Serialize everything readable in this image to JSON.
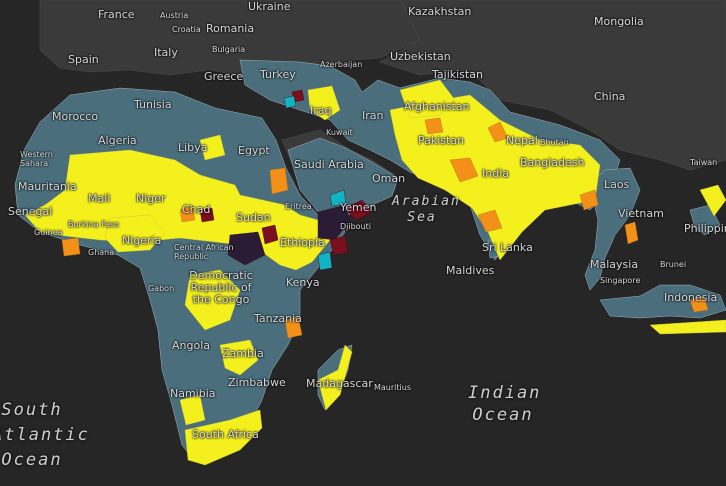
{
  "colors": {
    "ocean": "#262626",
    "land_outside": "#3a3a3a",
    "base": "#4a6e7c",
    "yellow": "#f3f01e",
    "orange": "#f39018",
    "dark_red": "#7a0f1e",
    "navy": "#2b1c35",
    "teal": "#10b4c4",
    "border": "#9fb3bb"
  },
  "labels": {
    "france": "France",
    "austria": "Austria",
    "romania": "Romania",
    "croatia": "Croatia",
    "ukraine": "Ukraine",
    "kazakhstan": "Kazakhstan",
    "mongolia": "Mongolia",
    "spain": "Spain",
    "italy": "Italy",
    "bulgaria": "Bulgaria",
    "uzbekistan": "Uzbekistan",
    "azerbaijan": "Azerbaijan",
    "turkey": "Turkey",
    "greece": "Greece",
    "tajikistan": "Tajikistan",
    "china": "China",
    "morocco": "Morocco",
    "tunisia": "Tunisia",
    "iraq": "Iraq",
    "iran": "Iran",
    "afghanistan": "Afghanistan",
    "algeria": "Algeria",
    "libya": "Libya",
    "egypt": "Egypt",
    "kuwait": "Kuwait",
    "pakistan": "Pakistan",
    "nepal": "Nepal",
    "bhutan": "Bhutan",
    "bangladesh": "Bangladesh",
    "western_sahara": "Western Sahara",
    "saudi_arabia": "Saudi Arabia",
    "oman": "Oman",
    "india": "India",
    "taiwan": "Taiwan",
    "mauritania": "Mauritania",
    "mali": "Mali",
    "niger": "Niger",
    "laos": "Laos",
    "senegal": "Senegal",
    "burkina_faso": "Burkina Faso",
    "chad": "Chad",
    "sudan": "Sudan",
    "eritrea": "Eritrea",
    "yemen": "Yemen",
    "vietnam": "Vietnam",
    "guinea": "Guinea",
    "nigeria": "Nigeria",
    "ghana": "Ghana",
    "central_african_republic": "Central African Republic",
    "ethiopia": "Ethiopia",
    "djibouti": "Djibouti",
    "sri_lanka": "Sri Lanka",
    "philippines": "Philippines",
    "maldives": "Maldives",
    "malaysia": "Malaysia",
    "brunei": "Brunei",
    "singapore": "Singapore",
    "gabon": "Gabon",
    "drc": "Democratic Republic of the Congo",
    "kenya": "Kenya",
    "indonesia": "Indonesia",
    "tanzania": "Tanzania",
    "angola": "Angola",
    "zambia": "Zambia",
    "zimbabwe": "Zimbabwe",
    "madagascar": "Madagascar",
    "mauritius": "Mauritius",
    "namibia": "Namibia",
    "south_africa": "South Africa"
  },
  "seas": {
    "arabian_sea": "Arabian Sea",
    "indian_ocean": "Indian Ocean",
    "south_atlantic": "South Atlantic Ocean"
  }
}
